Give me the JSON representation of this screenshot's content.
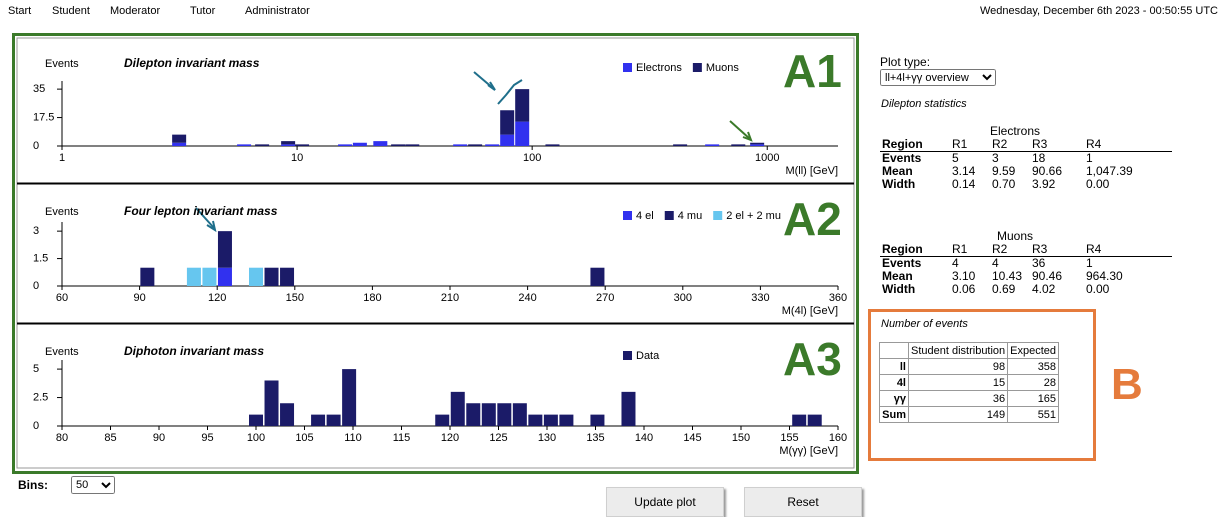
{
  "nav": [
    "Start",
    "Student",
    "Moderator",
    "Tutor",
    "Administrator"
  ],
  "date": "Wednesday, December 6th 2023 - 00:50:55 UTC",
  "chart_data": [
    {
      "type": "bar",
      "panel_label": "A1",
      "title": "Dilepton invariant mass",
      "y_label": "Events",
      "x_label": "M(ll) [GeV]",
      "xscale": "log",
      "xlim": [
        1,
        2000
      ],
      "xticks": [
        1,
        10,
        100,
        1000
      ],
      "ylim": [
        0,
        40
      ],
      "yticks": [
        0,
        17.5,
        35
      ],
      "stacked": true,
      "legend": "top-right",
      "x": [
        3.15,
        5.95,
        7.1,
        9.16,
        10.5,
        16,
        18.5,
        22.6,
        26.9,
        30.9,
        49.4,
        57.2,
        67.6,
        78.3,
        90.7,
        122,
        426,
        583,
        753,
        906
      ],
      "series": [
        {
          "name": "Electrons",
          "color": "#3131ef",
          "values": [
            2,
            1,
            0,
            1,
            0,
            1,
            2,
            3,
            0,
            0,
            1,
            0,
            1,
            7,
            15,
            0,
            0,
            1,
            0,
            1
          ]
        },
        {
          "name": "Muons",
          "color": "#1b1b68",
          "values": [
            5,
            0,
            1,
            2,
            1,
            0,
            0,
            0,
            1,
            1,
            0,
            1,
            0,
            15,
            20,
            1,
            1,
            0,
            1,
            1
          ]
        }
      ]
    },
    {
      "type": "bar",
      "panel_label": "A2",
      "title": "Four lepton invariant mass",
      "y_label": "Events",
      "x_label": "M(4l) [GeV]",
      "xscale": "linear",
      "xlim": [
        60,
        360
      ],
      "xticks": [
        60,
        90,
        120,
        150,
        180,
        210,
        240,
        270,
        300,
        330,
        360
      ],
      "ylim": [
        0,
        3.5
      ],
      "yticks": [
        0,
        1.5,
        3
      ],
      "stacked": true,
      "legend": "top-right",
      "x": [
        93,
        111,
        117,
        123,
        135,
        141,
        147,
        267
      ],
      "series": [
        {
          "name": "4 el",
          "color": "#3131ef",
          "values": [
            0,
            0,
            0,
            1,
            0,
            0,
            0,
            0
          ]
        },
        {
          "name": "4 mu",
          "color": "#1b1b68",
          "values": [
            1,
            0,
            0,
            2,
            0,
            1,
            1,
            1
          ]
        },
        {
          "name": "2 el + 2 mu",
          "color": "#66c6ef",
          "values": [
            0,
            1,
            1,
            0,
            1,
            0,
            0,
            0
          ]
        }
      ]
    },
    {
      "type": "bar",
      "panel_label": "A3",
      "title": "Diphoton invariant mass",
      "y_label": "Events",
      "x_label": "M(γγ) [GeV]",
      "xscale": "linear",
      "xlim": [
        80,
        160
      ],
      "xticks": [
        80,
        85,
        90,
        95,
        100,
        105,
        110,
        115,
        120,
        125,
        130,
        135,
        140,
        145,
        150,
        155,
        160
      ],
      "ylim": [
        0,
        5.8
      ],
      "yticks": [
        0,
        2.5,
        5
      ],
      "stacked": true,
      "legend": "top-right",
      "x": [
        100.0,
        101.6,
        103.2,
        106.4,
        108.0,
        109.6,
        119.2,
        120.8,
        122.4,
        124.0,
        125.6,
        127.2,
        128.8,
        130.4,
        132.0,
        135.2,
        138.4,
        156.0,
        157.6
      ],
      "series": [
        {
          "name": "Data",
          "color": "#1b1b68",
          "values": [
            1,
            4,
            2,
            1,
            1,
            5,
            1,
            3,
            2,
            2,
            2,
            2,
            1,
            1,
            1,
            1,
            3,
            1,
            1
          ]
        }
      ]
    }
  ],
  "plot_type": {
    "label": "Plot type:",
    "selected": "ll+4l+γγ overview"
  },
  "dilepton_statistics": {
    "title": "Dilepton statistics",
    "tables": [
      {
        "name": "Electrons",
        "header": [
          "Region",
          "R1",
          "R2",
          "R3",
          "R4"
        ],
        "rows": [
          [
            "Events",
            "5",
            "3",
            "18",
            "1"
          ],
          [
            "Mean",
            "3.14",
            "9.59",
            "90.66",
            "1,047.39"
          ],
          [
            "Width",
            "0.14",
            "0.70",
            "3.92",
            "0.00"
          ]
        ]
      },
      {
        "name": "Muons",
        "header": [
          "Region",
          "R1",
          "R2",
          "R3",
          "R4"
        ],
        "rows": [
          [
            "Events",
            "4",
            "4",
            "36",
            "1"
          ],
          [
            "Mean",
            "3.10",
            "10.43",
            "90.46",
            "964.30"
          ],
          [
            "Width",
            "0.06",
            "0.69",
            "4.02",
            "0.00"
          ]
        ]
      }
    ]
  },
  "number_of_events": {
    "title": "Number of events",
    "header": [
      "Student distribution",
      "Expected"
    ],
    "rows": [
      [
        "ll",
        "98",
        "358"
      ],
      [
        "4l",
        "15",
        "28"
      ],
      [
        "γγ",
        "36",
        "165"
      ],
      [
        "Sum",
        "149",
        "551"
      ]
    ]
  },
  "box_label": "B",
  "bins": {
    "label": "Bins:",
    "selected": "50"
  },
  "buttons": [
    "Update plot",
    "Reset"
  ]
}
